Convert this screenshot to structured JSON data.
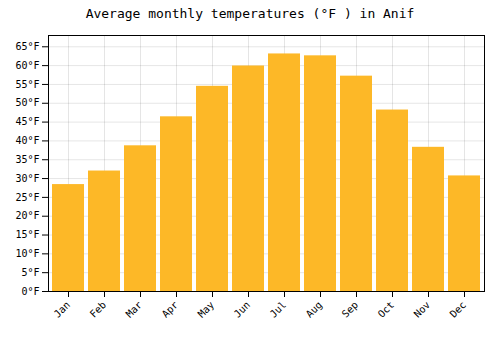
{
  "chart_data": {
    "type": "bar",
    "title": "Average monthly temperatures (°F ) in Anif",
    "categories": [
      "Jan",
      "Feb",
      "Mar",
      "Apr",
      "May",
      "Jun",
      "Jul",
      "Aug",
      "Sep",
      "Oct",
      "Nov",
      "Dec"
    ],
    "values": [
      28.4,
      32.0,
      38.7,
      46.4,
      54.5,
      59.9,
      63.1,
      62.6,
      57.2,
      48.2,
      38.3,
      30.7
    ],
    "color": "#FDB827",
    "ylim": [
      0,
      68
    ],
    "yticks": [
      {
        "value": 0,
        "label": "0°F"
      },
      {
        "value": 5,
        "label": "5°F"
      },
      {
        "value": 10,
        "label": "10°F"
      },
      {
        "value": 15,
        "label": "15°F"
      },
      {
        "value": 20,
        "label": "20°F"
      },
      {
        "value": 25,
        "label": "25°F"
      },
      {
        "value": 30,
        "label": "30°F"
      },
      {
        "value": 35,
        "label": "35°F"
      },
      {
        "value": 40,
        "label": "40°F"
      },
      {
        "value": 45,
        "label": "45°F"
      },
      {
        "value": 50,
        "label": "50°F"
      },
      {
        "value": 55,
        "label": "55°F"
      },
      {
        "value": 60,
        "label": "60°F"
      },
      {
        "value": 65,
        "label": "65°F"
      }
    ],
    "grid": true
  }
}
